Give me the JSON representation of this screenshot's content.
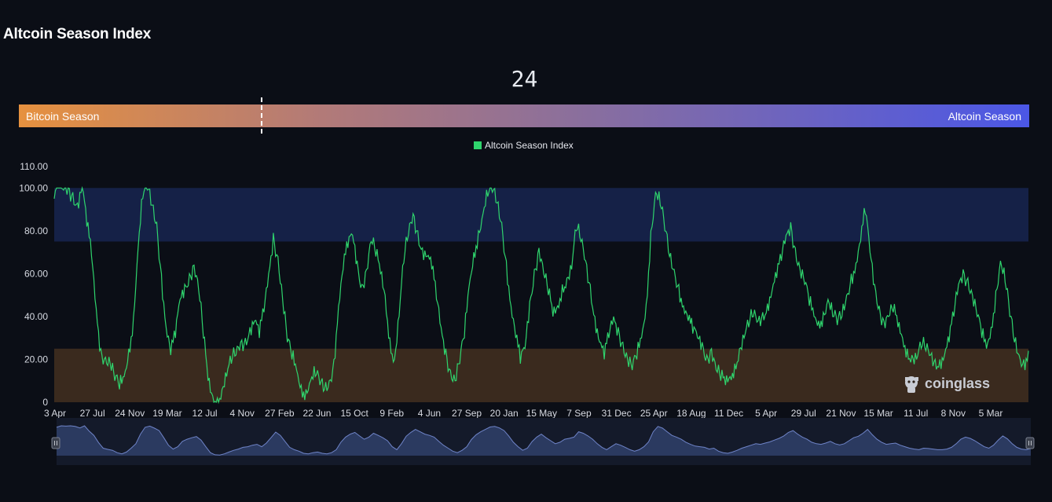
{
  "page": {
    "title": "Altcoin Season Index"
  },
  "indicator": {
    "current_value": "24",
    "value": 24,
    "left_label": "Bitcoin Season",
    "right_label": "Altcoin Season",
    "marker_fraction": 0.24
  },
  "watermark": {
    "text": "coinglass"
  },
  "colors": {
    "line": "#2fd46d",
    "altcoin_zone": "#152147",
    "bitcoin_zone": "#3a2a1e",
    "navigator_fill": "#2b3a60",
    "navigator_line": "#6f84c8"
  },
  "chart_data": {
    "type": "line",
    "title": "",
    "xlabel": "",
    "ylabel": "",
    "ylim": [
      0,
      110
    ],
    "yticks": [
      "0",
      "20.00",
      "40.00",
      "60.00",
      "80.00",
      "100.00",
      "110.00"
    ],
    "ytick_values": [
      0,
      20,
      40,
      60,
      80,
      100,
      110
    ],
    "xtick_labels": [
      "3 Apr",
      "27 Jul",
      "24 Nov",
      "19 Mar",
      "12 Jul",
      "4 Nov",
      "27 Feb",
      "22 Jun",
      "15 Oct",
      "9 Feb",
      "4 Jun",
      "27 Sep",
      "20 Jan",
      "15 May",
      "7 Sep",
      "31 Dec",
      "25 Apr",
      "18 Aug",
      "11 Dec",
      "5 Apr",
      "29 Jul",
      "21 Nov",
      "15 Mar",
      "11 Jul",
      "8 Nov",
      "5 Mar"
    ],
    "bands": [
      {
        "name": "altcoin-season-zone",
        "from": 75,
        "to": 100
      },
      {
        "name": "bitcoin-season-zone",
        "from": 0,
        "to": 25
      }
    ],
    "legend": {
      "position": "top-center"
    },
    "grid": false,
    "series": [
      {
        "name": "Altcoin Season Index",
        "values": [
          95,
          100,
          99,
          100,
          98,
          93,
          100,
          82,
          68,
          44,
          25,
          21,
          18,
          10,
          6,
          12,
          25,
          40,
          72,
          95,
          99,
          92,
          84,
          60,
          35,
          22,
          30,
          48,
          55,
          60,
          64,
          52,
          30,
          10,
          3,
          2,
          6,
          12,
          18,
          22,
          28,
          30,
          35,
          38,
          30,
          42,
          60,
          79,
          68,
          48,
          28,
          20,
          15,
          8,
          6,
          10,
          12,
          8,
          6,
          10,
          20,
          45,
          62,
          72,
          78,
          66,
          55,
          62,
          75,
          68,
          60,
          50,
          30,
          20,
          40,
          65,
          78,
          88,
          80,
          72,
          68,
          62,
          48,
          35,
          25,
          15,
          10,
          18,
          30,
          54,
          70,
          80,
          88,
          96,
          98,
          93,
          84,
          66,
          45,
          30,
          18,
          25,
          47,
          62,
          72,
          60,
          50,
          40,
          45,
          55,
          58,
          62,
          80,
          75,
          66,
          55,
          40,
          28,
          20,
          30,
          40,
          35,
          28,
          20,
          15,
          20,
          30,
          46,
          80,
          98,
          92,
          80,
          68,
          62,
          55,
          45,
          38,
          32,
          30,
          28,
          22,
          25,
          15,
          10,
          8,
          12,
          18,
          25,
          30,
          35,
          40,
          38,
          42,
          46,
          52,
          58,
          66,
          78,
          84,
          72,
          62,
          55,
          45,
          40,
          38,
          42,
          48,
          40,
          36,
          40,
          50,
          60,
          65,
          75,
          88,
          70,
          55,
          45,
          38,
          40,
          42,
          35,
          30,
          25,
          22,
          20,
          25,
          24,
          22,
          20,
          20,
          22,
          28,
          40,
          55,
          62,
          58,
          50,
          40,
          30,
          25,
          35,
          52,
          66,
          56,
          40,
          28,
          22,
          20,
          24
        ]
      }
    ]
  }
}
